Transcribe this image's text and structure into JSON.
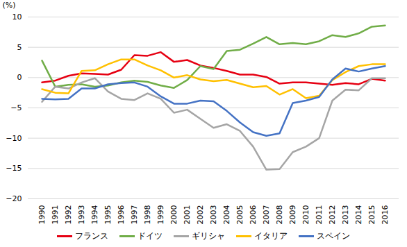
{
  "chart_data": {
    "type": "line",
    "y_label": "(%)",
    "categories": [
      "1990",
      "1991",
      "1992",
      "1993",
      "1994",
      "1995",
      "1996",
      "1997",
      "1998",
      "1999",
      "2000",
      "2001",
      "2002",
      "2003",
      "2004",
      "2005",
      "2006",
      "2007",
      "2008",
      "2009",
      "2010",
      "2011",
      "2012",
      "2013",
      "2014",
      "2015",
      "2016"
    ],
    "series": [
      {
        "name": "フランス",
        "color": "#e60012",
        "values": [
          -0.8,
          -0.5,
          0.3,
          0.7,
          0.6,
          0.5,
          1.3,
          3.7,
          3.6,
          4.2,
          2.6,
          2.9,
          2.0,
          1.6,
          1.1,
          0.5,
          0.5,
          0.1,
          -1.0,
          -0.8,
          -0.8,
          -1.0,
          -1.2,
          -0.9,
          -1.1,
          -0.2,
          -0.5
        ]
      },
      {
        "name": "ドイツ",
        "color": "#70ad47",
        "values": [
          2.8,
          -1.5,
          -1.2,
          -1.1,
          -1.5,
          -1.3,
          -0.8,
          -0.5,
          -0.7,
          -1.3,
          -1.7,
          -0.4,
          1.9,
          1.4,
          4.4,
          4.6,
          5.6,
          6.7,
          5.5,
          5.7,
          5.5,
          6.0,
          7.0,
          6.7,
          7.3,
          8.4,
          8.6
        ]
      },
      {
        "name": "ギリシャ",
        "color": "#a5a5a5",
        "values": [
          -4.0,
          -1.5,
          -1.8,
          -0.8,
          -0.1,
          -2.3,
          -3.5,
          -3.7,
          -2.6,
          -3.5,
          -5.8,
          -5.3,
          -6.8,
          -8.3,
          -7.7,
          -8.8,
          -11.4,
          -15.2,
          -15.1,
          -12.3,
          -11.4,
          -10.0,
          -3.8,
          -2.0,
          -2.1,
          -0.1,
          -0.1
        ]
      },
      {
        "name": "イタリア",
        "color": "#ffc000",
        "values": [
          -1.9,
          -2.5,
          -2.6,
          1.1,
          1.2,
          2.2,
          3.0,
          3.0,
          2.0,
          1.2,
          0.0,
          0.4,
          -0.3,
          -0.6,
          -0.4,
          -1.0,
          -1.6,
          -1.4,
          -2.8,
          -1.9,
          -3.4,
          -3.0,
          -0.4,
          0.9,
          1.9,
          2.2,
          2.2
        ]
      },
      {
        "name": "スペイン",
        "color": "#4472c4",
        "values": [
          -3.5,
          -3.6,
          -3.5,
          -1.8,
          -1.8,
          -1.1,
          -0.9,
          -0.8,
          -1.5,
          -3.1,
          -4.3,
          -4.3,
          -3.8,
          -3.9,
          -5.5,
          -7.4,
          -9.0,
          -9.6,
          -9.2,
          -4.2,
          -3.8,
          -3.2,
          -0.3,
          1.5,
          1.0,
          1.5,
          1.9
        ]
      }
    ],
    "ylim": [
      -20,
      10
    ],
    "yticks": [
      -20,
      -15,
      -10,
      -5,
      0,
      5,
      10
    ],
    "grid": true,
    "legend": "bottom"
  }
}
